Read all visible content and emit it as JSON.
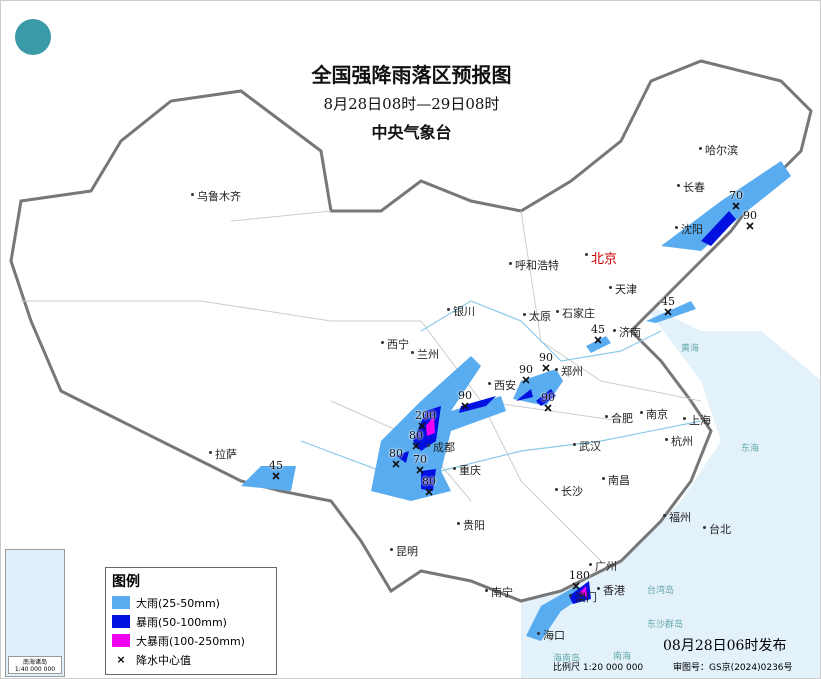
{
  "title": "全国强降雨落区预报图",
  "period": "8月28日08时—29日08时",
  "issuer": "中央气象台",
  "issue_time": "08月28日06时发布",
  "scale": "比例尺 1:20 000 000",
  "map_review_no": "审图号：GS京(2024)0236号",
  "inset": {
    "label": "南海诸岛",
    "scale": "1:40 000 000"
  },
  "legend": {
    "title": "图例",
    "items": [
      {
        "label": "大雨(25-50mm)",
        "color": "#5aacf0"
      },
      {
        "label": "暴雨(50-100mm)",
        "color": "#0010e0"
      },
      {
        "label": "大暴雨(100-250mm)",
        "color": "#f000f0"
      },
      {
        "label": "降水中心值",
        "symbol": "×"
      }
    ]
  },
  "capital": "北京",
  "cities": [
    "乌鲁木齐",
    "哈尔滨",
    "长春",
    "沈阳",
    "呼和浩特",
    "天津",
    "石家庄",
    "太原",
    "银川",
    "西宁",
    "兰州",
    "济南",
    "郑州",
    "西安",
    "合肥",
    "南京",
    "上海",
    "杭州",
    "成都",
    "重庆",
    "武汉",
    "南昌",
    "长沙",
    "拉萨",
    "贵阳",
    "福州",
    "台北",
    "昆明",
    "广州",
    "南宁",
    "香港",
    "澳门",
    "海口"
  ],
  "seas": [
    "黄海",
    "东海",
    "南海",
    "台湾岛",
    "东沙群岛",
    "海南岛"
  ],
  "rain_centers": [
    "70",
    "90",
    "45",
    "45",
    "90",
    "90",
    "90",
    "90",
    "200",
    "80",
    "80",
    "70",
    "80",
    "45",
    "180"
  ]
}
